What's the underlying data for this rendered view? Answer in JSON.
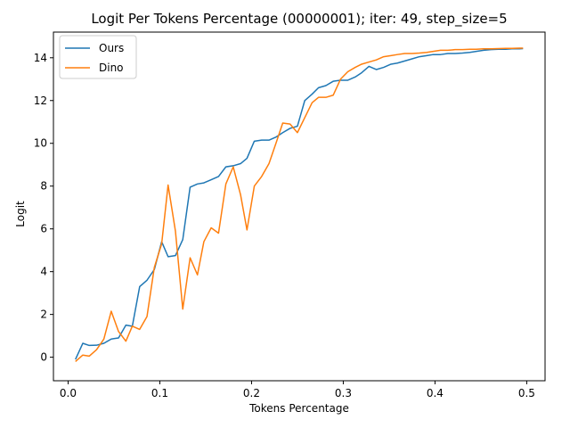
{
  "chart_data": {
    "type": "line",
    "title": "Logit Per Tokens Percentage (00000001); iter: 49, step_size=5",
    "xlabel": "Tokens Percentage",
    "ylabel": "Logit",
    "xlim": [
      -0.016,
      0.52
    ],
    "ylim": [
      -1.1,
      15.2
    ],
    "xticks": [
      0.0,
      0.1,
      0.2,
      0.3,
      0.4,
      0.5
    ],
    "xtick_labels": [
      "0.0",
      "0.1",
      "0.2",
      "0.3",
      "0.4",
      "0.5"
    ],
    "yticks": [
      0,
      2,
      4,
      6,
      8,
      10,
      12,
      14
    ],
    "ytick_labels": [
      "0",
      "2",
      "4",
      "6",
      "8",
      "10",
      "12",
      "14"
    ],
    "grid": false,
    "legend": "top-left",
    "x": [
      0.008,
      0.016,
      0.023,
      0.031,
      0.039,
      0.047,
      0.055,
      0.063,
      0.07,
      0.078,
      0.086,
      0.094,
      0.102,
      0.109,
      0.117,
      0.125,
      0.133,
      0.141,
      0.148,
      0.156,
      0.164,
      0.172,
      0.18,
      0.188,
      0.195,
      0.203,
      0.211,
      0.219,
      0.227,
      0.234,
      0.242,
      0.25,
      0.258,
      0.266,
      0.273,
      0.281,
      0.289,
      0.297,
      0.305,
      0.313,
      0.32,
      0.328,
      0.336,
      0.344,
      0.352,
      0.359,
      0.367,
      0.375,
      0.383,
      0.391,
      0.398,
      0.406,
      0.414,
      0.422,
      0.43,
      0.438,
      0.445,
      0.453,
      0.461,
      0.469,
      0.477,
      0.484,
      0.492,
      0.496
    ],
    "series": [
      {
        "name": "Ours",
        "color": "#1f77b4",
        "values": [
          -0.1,
          0.65,
          0.55,
          0.56,
          0.65,
          0.85,
          0.9,
          1.5,
          1.45,
          3.3,
          3.6,
          4.1,
          5.4,
          4.7,
          4.75,
          5.5,
          7.95,
          8.1,
          8.15,
          8.3,
          8.45,
          8.9,
          8.95,
          9.05,
          9.3,
          10.1,
          10.15,
          10.15,
          10.3,
          10.5,
          10.7,
          10.8,
          12.0,
          12.3,
          12.6,
          12.7,
          12.9,
          12.95,
          12.95,
          13.1,
          13.3,
          13.6,
          13.45,
          13.55,
          13.7,
          13.75,
          13.85,
          13.95,
          14.05,
          14.1,
          14.15,
          14.15,
          14.2,
          14.2,
          14.22,
          14.25,
          14.3,
          14.35,
          14.38,
          14.4,
          14.4,
          14.42,
          14.42,
          14.43
        ]
      },
      {
        "name": "Dino",
        "color": "#ff7f0e",
        "values": [
          -0.2,
          0.1,
          0.05,
          0.35,
          0.85,
          2.15,
          1.2,
          0.75,
          1.45,
          1.3,
          1.9,
          4.2,
          5.3,
          8.05,
          5.9,
          2.25,
          4.65,
          3.85,
          5.4,
          6.05,
          5.8,
          8.1,
          8.9,
          7.6,
          5.95,
          8.0,
          8.45,
          9.05,
          10.05,
          10.95,
          10.9,
          10.5,
          11.2,
          11.9,
          12.15,
          12.15,
          12.25,
          13.0,
          13.35,
          13.55,
          13.7,
          13.8,
          13.9,
          14.05,
          14.1,
          14.15,
          14.2,
          14.2,
          14.22,
          14.25,
          14.3,
          14.35,
          14.35,
          14.38,
          14.38,
          14.4,
          14.4,
          14.42,
          14.42,
          14.43,
          14.44,
          14.44,
          14.45,
          14.45
        ]
      }
    ]
  }
}
